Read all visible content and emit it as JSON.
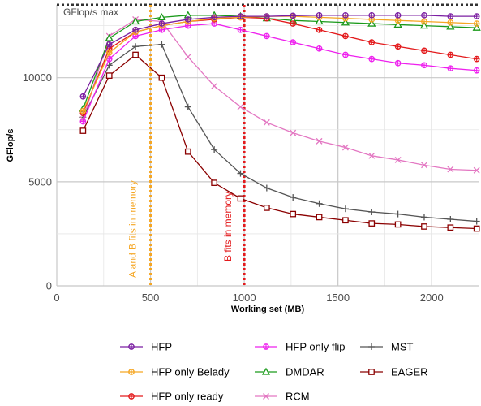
{
  "chart_data": {
    "type": "line",
    "xlabel": "Working set (MB)",
    "ylabel": "GFlop/s",
    "xlim": [
      0,
      2250
    ],
    "ylim": [
      0,
      13500
    ],
    "x_ticks": [
      0,
      500,
      1000,
      1500,
      2000
    ],
    "y_ticks": [
      0,
      5000,
      10000
    ],
    "grid": true,
    "legend_position": "bottom",
    "x": [
      140,
      280,
      420,
      560,
      700,
      840,
      980,
      1120,
      1260,
      1400,
      1540,
      1680,
      1820,
      1960,
      2100,
      2240
    ],
    "series": [
      {
        "name": "HFP",
        "color": "#7b1fa2",
        "marker": "circle-plus",
        "values": [
          9100,
          11600,
          12300,
          12600,
          12800,
          12900,
          12950,
          12950,
          12980,
          13000,
          13000,
          13000,
          13000,
          13000,
          12950,
          12950
        ]
      },
      {
        "name": "HFP only Belady",
        "color": "#f5a623",
        "marker": "circle-plus",
        "values": [
          8400,
          11200,
          12200,
          12500,
          12700,
          12850,
          12900,
          12950,
          12950,
          12900,
          12850,
          12800,
          12750,
          12700,
          12650,
          12600
        ]
      },
      {
        "name": "HFP only ready",
        "color": "#e31a1c",
        "marker": "circle-plus",
        "values": [
          8300,
          11400,
          12200,
          12500,
          12700,
          12800,
          12900,
          12850,
          12600,
          12300,
          12000,
          11700,
          11500,
          11300,
          11100,
          10900
        ]
      },
      {
        "name": "HFP only flip",
        "color": "#ee21ee",
        "marker": "circle-plus",
        "values": [
          7900,
          10900,
          12000,
          12300,
          12500,
          12600,
          12300,
          12000,
          11700,
          11400,
          11100,
          10900,
          10700,
          10600,
          10450,
          10350
        ]
      },
      {
        "name": "DMDAR",
        "color": "#1a9a1a",
        "marker": "triangle",
        "values": [
          8500,
          11900,
          12700,
          12900,
          13000,
          13000,
          12950,
          12850,
          12750,
          12700,
          12650,
          12600,
          12550,
          12500,
          12450,
          12400
        ]
      },
      {
        "name": "RCM",
        "color": "#e377c2",
        "marker": "x",
        "values": [
          8000,
          12000,
          12800,
          12700,
          11000,
          9600,
          8600,
          7850,
          7350,
          6950,
          6650,
          6250,
          6050,
          5800,
          5600,
          5550
        ]
      },
      {
        "name": "MST",
        "color": "#555555",
        "marker": "plus",
        "values": [
          8100,
          10600,
          11500,
          11600,
          8600,
          6550,
          5400,
          4700,
          4250,
          3950,
          3700,
          3550,
          3450,
          3300,
          3200,
          3100
        ]
      },
      {
        "name": "EAGER",
        "color": "#8b0000",
        "marker": "square",
        "values": [
          7450,
          10100,
          11100,
          10000,
          6450,
          4950,
          4200,
          3750,
          3450,
          3300,
          3150,
          3000,
          2950,
          2850,
          2800,
          2750
        ]
      }
    ],
    "reference_lines": [
      {
        "type": "horizontal",
        "value": 13500,
        "label": "GFlop/s max",
        "color": "#333333"
      },
      {
        "type": "vertical",
        "value": 500,
        "label": "A and B fits in memory",
        "color": "#f5a623"
      },
      {
        "type": "vertical",
        "value": 1000,
        "label": "B fits in memory",
        "color": "#e31a1c"
      }
    ]
  }
}
